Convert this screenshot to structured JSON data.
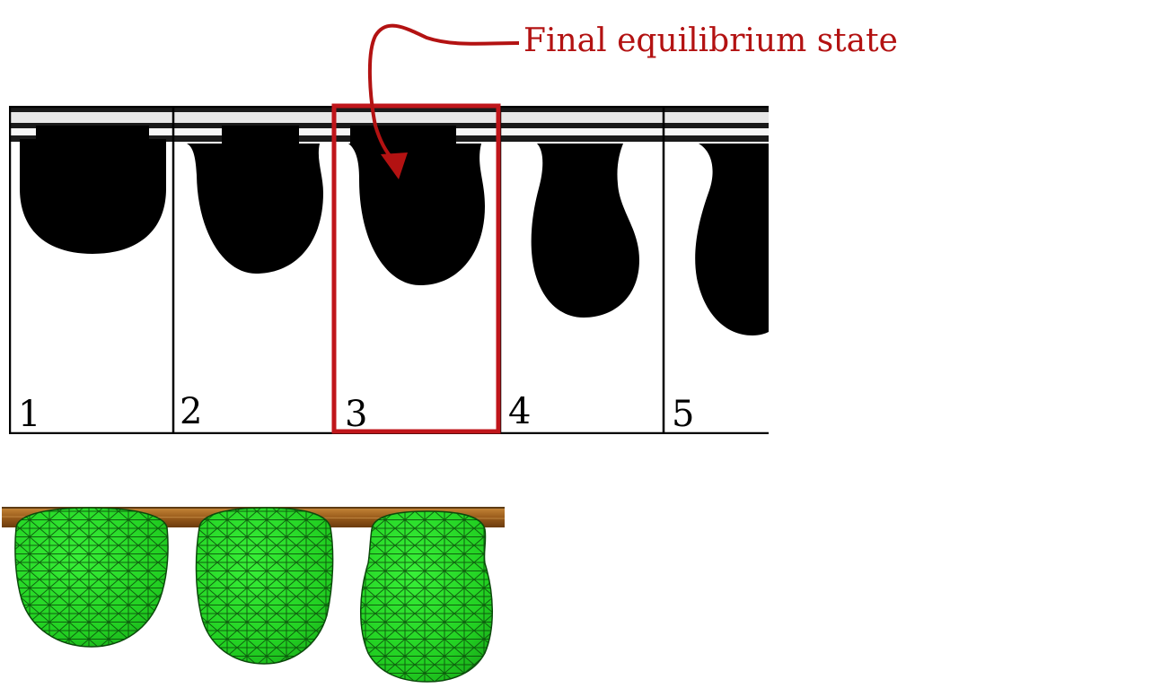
{
  "annotation": {
    "text": "Final equilibrium state",
    "color": "#b31212"
  },
  "experiment": {
    "frames": [
      {
        "label": "1"
      },
      {
        "label": "2"
      },
      {
        "label": "3",
        "highlighted": true
      },
      {
        "label": "4"
      },
      {
        "label": "5"
      }
    ],
    "highlight_color": "#c0161b"
  },
  "simulation": {
    "droplet_count": 3,
    "droplet_color": "#22d822",
    "mesh_color": "#0a4a0a",
    "substrate_color": "#a9691f"
  }
}
